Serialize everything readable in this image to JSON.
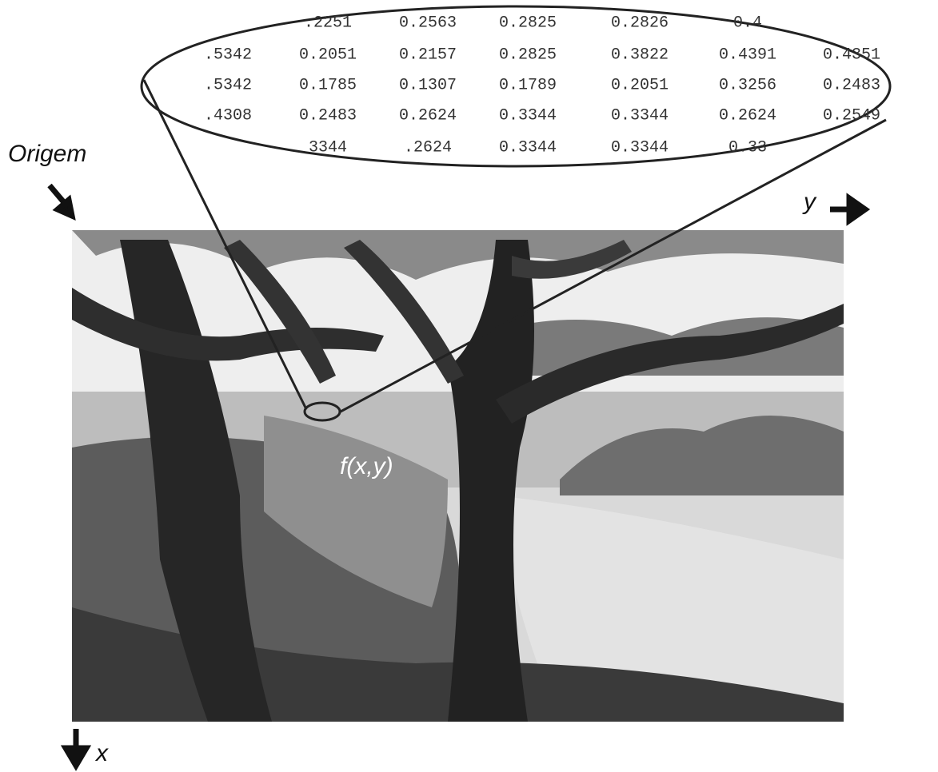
{
  "labels": {
    "origin": "Origem",
    "y_axis": "y",
    "x_axis": "x",
    "function": "f(x,y)"
  },
  "matrix": {
    "rows": [
      [
        ".2251",
        "0.2563",
        "0.2825",
        "0.2826",
        "0.4"
      ],
      [
        ".5342",
        "0.2051",
        "0.2157",
        "0.2825",
        "0.3822",
        "0.4391",
        "0.4351"
      ],
      [
        ".5342",
        "0.1785",
        "0.1307",
        "0.1789",
        "0.2051",
        "0.3256",
        "0.2483"
      ],
      [
        ".4308",
        "0.2483",
        "0.2624",
        "0.3344",
        "0.3344",
        "0.2624",
        "0.2549"
      ],
      [
        "3344",
        ".2624",
        "0.3344",
        "0.3344",
        "0.33"
      ]
    ]
  }
}
